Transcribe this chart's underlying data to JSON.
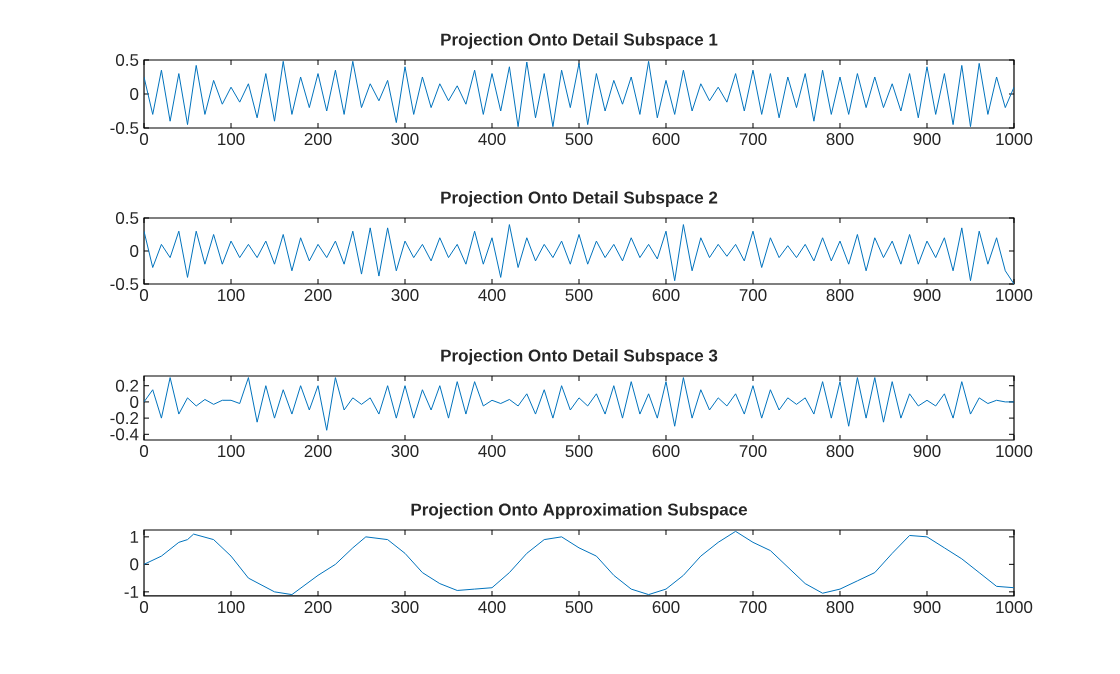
{
  "chart_data": [
    {
      "type": "line",
      "title": "Projection Onto Detail Subspace 1",
      "xlim": [
        0,
        1000
      ],
      "ylim": [
        -0.5,
        0.5
      ],
      "xticks": [
        0,
        100,
        200,
        300,
        400,
        500,
        600,
        700,
        800,
        900,
        1000
      ],
      "yticks": [
        -0.5,
        0,
        0.5
      ],
      "x": [
        0,
        10,
        20,
        30,
        40,
        50,
        60,
        70,
        80,
        90,
        100,
        110,
        120,
        130,
        140,
        150,
        160,
        170,
        180,
        190,
        200,
        210,
        220,
        230,
        240,
        250,
        260,
        270,
        280,
        290,
        300,
        310,
        320,
        330,
        340,
        350,
        360,
        370,
        380,
        390,
        400,
        410,
        420,
        430,
        440,
        450,
        460,
        470,
        480,
        490,
        500,
        510,
        520,
        530,
        540,
        550,
        560,
        570,
        580,
        590,
        600,
        610,
        620,
        630,
        640,
        650,
        660,
        670,
        680,
        690,
        700,
        710,
        720,
        730,
        740,
        750,
        760,
        770,
        780,
        790,
        800,
        810,
        820,
        830,
        840,
        850,
        860,
        870,
        880,
        890,
        900,
        910,
        920,
        930,
        940,
        950,
        960,
        970,
        980,
        990,
        1000
      ],
      "series": [
        {
          "color": "#0072bd",
          "values": [
            0.25,
            -0.3,
            0.35,
            -0.4,
            0.3,
            -0.45,
            0.42,
            -0.3,
            0.2,
            -0.15,
            0.1,
            -0.12,
            0.15,
            -0.35,
            0.3,
            -0.4,
            0.48,
            -0.3,
            0.25,
            -0.2,
            0.3,
            -0.25,
            0.35,
            -0.3,
            0.48,
            -0.2,
            0.15,
            -0.1,
            0.2,
            -0.42,
            0.4,
            -0.3,
            0.25,
            -0.2,
            0.15,
            -0.1,
            0.12,
            -0.15,
            0.35,
            -0.3,
            0.3,
            -0.25,
            0.4,
            -0.48,
            0.47,
            -0.35,
            0.3,
            -0.48,
            0.35,
            -0.2,
            0.45,
            -0.45,
            0.3,
            -0.25,
            0.2,
            -0.15,
            0.25,
            -0.3,
            0.48,
            -0.35,
            0.2,
            -0.3,
            0.35,
            -0.25,
            0.15,
            -0.1,
            0.1,
            -0.12,
            0.3,
            -0.25,
            0.35,
            -0.3,
            0.3,
            -0.35,
            0.25,
            -0.2,
            0.3,
            -0.4,
            0.35,
            -0.3,
            0.25,
            -0.3,
            0.3,
            -0.2,
            0.25,
            -0.2,
            0.15,
            -0.25,
            0.3,
            -0.35,
            0.4,
            -0.3,
            0.3,
            -0.45,
            0.42,
            -0.48,
            0.45,
            -0.3,
            0.25,
            -0.2,
            0.1
          ]
        }
      ]
    },
    {
      "type": "line",
      "title": "Projection Onto Detail Subspace 2",
      "xlim": [
        0,
        1000
      ],
      "ylim": [
        -0.5,
        0.5
      ],
      "xticks": [
        0,
        100,
        200,
        300,
        400,
        500,
        600,
        700,
        800,
        900,
        1000
      ],
      "yticks": [
        -0.5,
        0,
        0.5
      ],
      "x": [
        0,
        10,
        20,
        30,
        40,
        50,
        60,
        70,
        80,
        90,
        100,
        110,
        120,
        130,
        140,
        150,
        160,
        170,
        180,
        190,
        200,
        210,
        220,
        230,
        240,
        250,
        260,
        270,
        280,
        290,
        300,
        310,
        320,
        330,
        340,
        350,
        360,
        370,
        380,
        390,
        400,
        410,
        420,
        430,
        440,
        450,
        460,
        470,
        480,
        490,
        500,
        510,
        520,
        530,
        540,
        550,
        560,
        570,
        580,
        590,
        600,
        610,
        620,
        630,
        640,
        650,
        660,
        670,
        680,
        690,
        700,
        710,
        720,
        730,
        740,
        750,
        760,
        770,
        780,
        790,
        800,
        810,
        820,
        830,
        840,
        850,
        860,
        870,
        880,
        890,
        900,
        910,
        920,
        930,
        940,
        950,
        960,
        970,
        980,
        990,
        1000
      ],
      "series": [
        {
          "color": "#0072bd",
          "values": [
            0.3,
            -0.25,
            0.1,
            -0.1,
            0.3,
            -0.4,
            0.3,
            -0.2,
            0.25,
            -0.2,
            0.15,
            -0.1,
            0.1,
            -0.1,
            0.15,
            -0.2,
            0.25,
            -0.3,
            0.2,
            -0.15,
            0.1,
            -0.1,
            0.15,
            -0.2,
            0.3,
            -0.35,
            0.35,
            -0.38,
            0.35,
            -0.3,
            0.15,
            -0.1,
            0.1,
            -0.15,
            0.2,
            -0.1,
            0.1,
            -0.2,
            0.3,
            -0.2,
            0.2,
            -0.4,
            0.4,
            -0.25,
            0.2,
            -0.15,
            0.1,
            -0.1,
            0.15,
            -0.2,
            0.25,
            -0.2,
            0.15,
            -0.1,
            0.1,
            -0.15,
            0.2,
            -0.1,
            0.1,
            -0.12,
            0.3,
            -0.45,
            0.4,
            -0.3,
            0.2,
            -0.1,
            0.1,
            -0.08,
            0.1,
            -0.15,
            0.3,
            -0.25,
            0.2,
            -0.1,
            0.08,
            -0.1,
            0.1,
            -0.15,
            0.2,
            -0.15,
            0.15,
            -0.2,
            0.25,
            -0.3,
            0.2,
            -0.1,
            0.15,
            -0.2,
            0.25,
            -0.2,
            0.15,
            -0.1,
            0.2,
            -0.3,
            0.35,
            -0.45,
            0.3,
            -0.2,
            0.2,
            -0.3,
            -0.5
          ]
        }
      ]
    },
    {
      "type": "line",
      "title": "Projection Onto Detail Subspace 3",
      "xlim": [
        0,
        1000
      ],
      "ylim": [
        -0.47,
        0.32
      ],
      "xticks": [
        0,
        100,
        200,
        300,
        400,
        500,
        600,
        700,
        800,
        900,
        1000
      ],
      "yticks": [
        -0.4,
        -0.2,
        0,
        0.2
      ],
      "x": [
        0,
        10,
        20,
        30,
        40,
        50,
        60,
        70,
        80,
        90,
        100,
        110,
        120,
        130,
        140,
        150,
        160,
        170,
        180,
        190,
        200,
        210,
        220,
        230,
        240,
        250,
        260,
        270,
        280,
        290,
        300,
        310,
        320,
        330,
        340,
        350,
        360,
        370,
        380,
        390,
        400,
        410,
        420,
        430,
        440,
        450,
        460,
        470,
        480,
        490,
        500,
        510,
        520,
        530,
        540,
        550,
        560,
        570,
        580,
        590,
        600,
        610,
        620,
        630,
        640,
        650,
        660,
        670,
        680,
        690,
        700,
        710,
        720,
        730,
        740,
        750,
        760,
        770,
        780,
        790,
        800,
        810,
        820,
        830,
        840,
        850,
        860,
        870,
        880,
        890,
        900,
        910,
        920,
        930,
        940,
        950,
        960,
        970,
        980,
        990,
        1000
      ],
      "series": [
        {
          "color": "#0072bd",
          "values": [
            0,
            0.15,
            -0.2,
            0.3,
            -0.15,
            0.05,
            -0.05,
            0.03,
            -0.03,
            0.02,
            0.02,
            -0.02,
            0.3,
            -0.25,
            0.2,
            -0.2,
            0.15,
            -0.15,
            0.2,
            -0.1,
            0.2,
            -0.35,
            0.3,
            -0.1,
            0.05,
            -0.03,
            0.05,
            -0.15,
            0.2,
            -0.2,
            0.2,
            -0.2,
            0.15,
            -0.1,
            0.2,
            -0.2,
            0.25,
            -0.15,
            0.25,
            -0.05,
            0.02,
            -0.02,
            0.03,
            -0.05,
            0.1,
            -0.15,
            0.15,
            -0.2,
            0.2,
            -0.1,
            0.05,
            -0.05,
            0.1,
            -0.15,
            0.2,
            -0.2,
            0.25,
            -0.15,
            0.1,
            -0.2,
            0.25,
            -0.3,
            0.3,
            -0.2,
            0.15,
            -0.1,
            0.05,
            -0.05,
            0.1,
            -0.15,
            0.2,
            -0.2,
            0.15,
            -0.1,
            0.05,
            -0.03,
            0.05,
            -0.15,
            0.25,
            -0.2,
            0.25,
            -0.3,
            0.3,
            -0.2,
            0.3,
            -0.25,
            0.25,
            -0.2,
            0.1,
            -0.05,
            0.02,
            -0.05,
            0.1,
            -0.2,
            0.25,
            -0.15,
            0.05,
            -0.02,
            0.02,
            0,
            0
          ]
        }
      ]
    },
    {
      "type": "line",
      "title": "Projection Onto Approximation Subspace",
      "xlim": [
        0,
        1000
      ],
      "ylim": [
        -1.15,
        1.25
      ],
      "xticks": [
        0,
        100,
        200,
        300,
        400,
        500,
        600,
        700,
        800,
        900,
        1000
      ],
      "yticks": [
        -1,
        0,
        1
      ],
      "x": [
        0,
        20,
        40,
        50,
        57,
        80,
        100,
        120,
        150,
        170,
        200,
        220,
        240,
        255,
        280,
        300,
        320,
        340,
        360,
        380,
        400,
        420,
        440,
        460,
        480,
        500,
        520,
        540,
        560,
        580,
        600,
        620,
        640,
        660,
        680,
        700,
        720,
        740,
        760,
        780,
        800,
        820,
        840,
        860,
        880,
        900,
        920,
        940,
        960,
        980,
        1000
      ],
      "series": [
        {
          "color": "#0072bd",
          "values": [
            0,
            0.3,
            0.8,
            0.9,
            1.1,
            0.9,
            0.3,
            -0.5,
            -1.0,
            -1.1,
            -0.4,
            0,
            0.6,
            1.0,
            0.9,
            0.4,
            -0.3,
            -0.7,
            -0.95,
            -0.9,
            -0.85,
            -0.3,
            0.4,
            0.9,
            1.0,
            0.6,
            0.3,
            -0.4,
            -0.9,
            -1.1,
            -0.9,
            -0.4,
            0.3,
            0.8,
            1.2,
            0.8,
            0.5,
            -0.1,
            -0.7,
            -1.05,
            -0.9,
            -0.6,
            -0.3,
            0.4,
            1.05,
            1.0,
            0.6,
            0.2,
            -0.3,
            -0.8,
            -0.85
          ]
        }
      ]
    }
  ]
}
